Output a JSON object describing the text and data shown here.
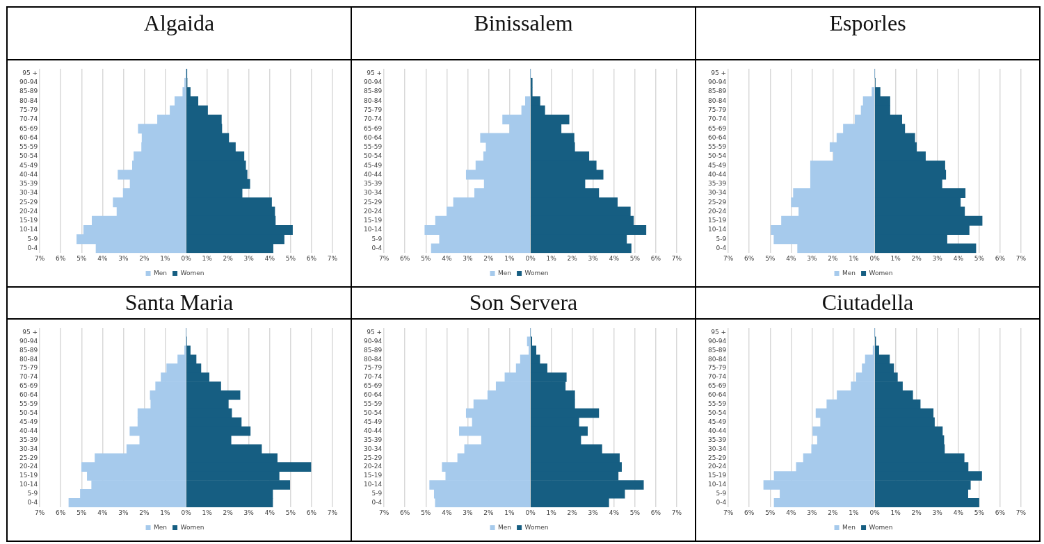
{
  "chart_data": [
    {
      "type": "bar",
      "orientation": "horizontal",
      "stacked": true,
      "title": "Algaida",
      "categories": [
        "95 +",
        "90-94",
        "85-89",
        "80-84",
        "75-79",
        "70-74",
        "65-69",
        "60-64",
        "55-59",
        "50-54",
        "45-49",
        "40-44",
        "35-39",
        "30-34",
        "25-29",
        "20-24",
        "15-19",
        "10-14",
        "5-9",
        "0-4"
      ],
      "series": [
        {
          "name": "Men",
          "color": "#a6caec",
          "values": [
            0,
            -0.07,
            -0.16,
            -0.54,
            -0.77,
            -1.37,
            -2.29,
            -2.11,
            -2.13,
            -2.5,
            -2.57,
            -3.26,
            -2.68,
            -3.01,
            -3.49,
            -3.31,
            -4.5,
            -4.9,
            -5.23,
            -4.31
          ]
        },
        {
          "name": "Women",
          "color": "#165e82",
          "values": [
            0.04,
            0.05,
            0.2,
            0.57,
            1.03,
            1.69,
            1.71,
            2.04,
            2.36,
            2.77,
            2.85,
            2.92,
            3.05,
            2.68,
            4.09,
            4.24,
            4.27,
            5.09,
            4.69,
            4.16
          ]
        }
      ],
      "xlim": [
        -7,
        7
      ],
      "xticks": [
        {
          "value": -7,
          "label": "7%"
        },
        {
          "value": -6,
          "label": "6%"
        },
        {
          "value": -5,
          "label": "5%"
        },
        {
          "value": -4,
          "label": "4%"
        },
        {
          "value": -3,
          "label": "3%"
        },
        {
          "value": -2,
          "label": "2%"
        },
        {
          "value": -1,
          "label": "1%"
        },
        {
          "value": 0,
          "label": "0%"
        },
        {
          "value": 1,
          "label": "1%"
        },
        {
          "value": 2,
          "label": "2%"
        },
        {
          "value": 3,
          "label": "3%"
        },
        {
          "value": 4,
          "label": "4%"
        },
        {
          "value": 5,
          "label": "5%"
        },
        {
          "value": 6,
          "label": "6%"
        },
        {
          "value": 7,
          "label": "7%"
        }
      ],
      "grid": "x",
      "legend": "bottom"
    },
    {
      "type": "bar",
      "orientation": "horizontal",
      "stacked": true,
      "title": "Binissalem",
      "categories": [
        "95 +",
        "90-94",
        "85-89",
        "80-84",
        "75-79",
        "70-74",
        "65-69",
        "60-64",
        "55-59",
        "50-54",
        "45-49",
        "40-44",
        "35-39",
        "30-34",
        "25-29",
        "20-24",
        "15-19",
        "10-14",
        "5-9",
        "0-4"
      ],
      "series": [
        {
          "name": "Men",
          "color": "#a6caec",
          "values": [
            0,
            null,
            null,
            -0.24,
            -0.42,
            -1.33,
            -0.99,
            -2.39,
            -2.12,
            -2.24,
            -2.61,
            -3.07,
            -2.21,
            -2.67,
            -3.68,
            -4.0,
            -4.54,
            -5.05,
            -4.35,
            -4.74
          ]
        },
        {
          "name": "Women",
          "color": "#165e82",
          "values": [
            0,
            0.09,
            0.09,
            0.46,
            0.69,
            1.85,
            1.47,
            2.09,
            2.12,
            2.8,
            3.15,
            3.48,
            2.61,
            3.27,
            4.16,
            4.78,
            4.93,
            5.53,
            4.6,
            4.82
          ]
        }
      ],
      "xlim": [
        -7,
        7
      ],
      "xticks": [
        {
          "value": -7,
          "label": "7%"
        },
        {
          "value": -6,
          "label": "6%"
        },
        {
          "value": -5,
          "label": "5%"
        },
        {
          "value": -4,
          "label": "4%"
        },
        {
          "value": -3,
          "label": "3%"
        },
        {
          "value": -2,
          "label": "2%"
        },
        {
          "value": -1,
          "label": "1%"
        },
        {
          "value": 0,
          "label": "0%"
        },
        {
          "value": 1,
          "label": "1%"
        },
        {
          "value": 2,
          "label": "2%"
        },
        {
          "value": 3,
          "label": "3%"
        },
        {
          "value": 4,
          "label": "4%"
        },
        {
          "value": 5,
          "label": "5%"
        },
        {
          "value": 6,
          "label": "6%"
        },
        {
          "value": 7,
          "label": "7%"
        }
      ],
      "grid": "x",
      "legend": "bottom"
    },
    {
      "type": "bar",
      "orientation": "horizontal",
      "stacked": true,
      "title": "Esporles",
      "categories": [
        "95 +",
        "90-94",
        "85-89",
        "80-84",
        "75-79",
        "70-74",
        "65-69",
        "60-64",
        "55-59",
        "50-54",
        "45-49",
        "40-44",
        "35-39",
        "30-34",
        "25-29",
        "20-24",
        "15-19",
        "10-14",
        "5-9",
        "0-4"
      ],
      "series": [
        {
          "name": "Men",
          "color": "#a6caec",
          "values": [
            0,
            null,
            -0.13,
            -0.55,
            -0.65,
            -0.94,
            -1.5,
            -1.81,
            -2.14,
            -1.97,
            -3.07,
            -3.07,
            -3.07,
            -3.89,
            -3.99,
            -3.63,
            -4.46,
            -4.96,
            -4.82,
            -3.69
          ]
        },
        {
          "name": "Women",
          "color": "#165e82",
          "values": [
            0,
            0.03,
            0.26,
            0.73,
            0.73,
            1.3,
            1.44,
            1.92,
            2.0,
            2.43,
            3.36,
            3.4,
            3.22,
            4.33,
            4.1,
            4.3,
            5.14,
            4.52,
            3.46,
            4.84
          ]
        }
      ],
      "xlim": [
        -7,
        7
      ],
      "xticks": [
        {
          "value": -7,
          "label": "7%"
        },
        {
          "value": -6,
          "label": "6%"
        },
        {
          "value": -5,
          "label": "5%"
        },
        {
          "value": -4,
          "label": "4%"
        },
        {
          "value": -3,
          "label": "3%"
        },
        {
          "value": -2,
          "label": "2%"
        },
        {
          "value": -1,
          "label": "1%"
        },
        {
          "value": 0,
          "label": "0%"
        },
        {
          "value": 1,
          "label": "1%"
        },
        {
          "value": 2,
          "label": "2%"
        },
        {
          "value": 3,
          "label": "3%"
        },
        {
          "value": 4,
          "label": "4%"
        },
        {
          "value": 5,
          "label": "5%"
        },
        {
          "value": 6,
          "label": "6%"
        },
        {
          "value": 7,
          "label": "7%"
        }
      ],
      "grid": "x",
      "legend": "bottom"
    },
    {
      "type": "bar",
      "orientation": "horizontal",
      "stacked": true,
      "title": "Santa Maria",
      "categories": [
        "95 +",
        "90-94",
        "85-89",
        "80-84",
        "75-79",
        "70-74",
        "65-69",
        "60-64",
        "55-59",
        "50-54",
        "45-49",
        "40-44",
        "35-39",
        "30-34",
        "25-29",
        "20-24",
        "15-19",
        "10-14",
        "5-9",
        "0-4"
      ],
      "series": [
        {
          "name": "Men",
          "color": "#a6caec",
          "values": [
            0,
            0,
            -0.07,
            -0.4,
            -0.93,
            -1.2,
            -1.46,
            -1.72,
            -1.69,
            -2.31,
            -2.31,
            -2.69,
            -2.22,
            -2.84,
            -4.36,
            -5.0,
            -4.73,
            -4.52,
            -5.06,
            -5.61
          ]
        },
        {
          "name": "Women",
          "color": "#165e82",
          "values": [
            0,
            0.02,
            0.2,
            0.48,
            0.71,
            1.1,
            1.66,
            2.58,
            2.02,
            2.18,
            2.64,
            3.07,
            2.15,
            3.61,
            4.36,
            5.97,
            4.45,
            4.96,
            4.14,
            4.14
          ]
        }
      ],
      "xlim": [
        -7,
        7
      ],
      "xticks": [
        {
          "value": -7,
          "label": "7%"
        },
        {
          "value": -6,
          "label": "6%"
        },
        {
          "value": -5,
          "label": "5%"
        },
        {
          "value": -4,
          "label": "4%"
        },
        {
          "value": -3,
          "label": "3%"
        },
        {
          "value": -2,
          "label": "2%"
        },
        {
          "value": -1,
          "label": "1%"
        },
        {
          "value": 0,
          "label": "0%"
        },
        {
          "value": 1,
          "label": "1%"
        },
        {
          "value": 2,
          "label": "2%"
        },
        {
          "value": 3,
          "label": "3%"
        },
        {
          "value": 4,
          "label": "4%"
        },
        {
          "value": 5,
          "label": "5%"
        },
        {
          "value": 6,
          "label": "6%"
        },
        {
          "value": 7,
          "label": "7%"
        }
      ],
      "grid": "x",
      "legend": "bottom"
    },
    {
      "type": "bar",
      "orientation": "horizontal",
      "stacked": true,
      "title": "Son Servera",
      "categories": [
        "95 +",
        "90-94",
        "85-89",
        "80-84",
        "75-79",
        "70-74",
        "65-69",
        "60-64",
        "55-59",
        "50-54",
        "45-49",
        "40-44",
        "35-39",
        "30-34",
        "25-29",
        "20-24",
        "15-19",
        "10-14",
        "5-9",
        "0-4"
      ],
      "series": [
        {
          "name": "Men",
          "color": "#a6caec",
          "values": [
            0,
            -0.15,
            -0.07,
            -0.48,
            -0.68,
            -1.22,
            -1.64,
            -2.04,
            -2.71,
            -3.07,
            -2.78,
            -3.4,
            -2.34,
            -3.15,
            -3.48,
            -4.22,
            -4.05,
            -4.82,
            -4.6,
            -4.55
          ]
        },
        {
          "name": "Women",
          "color": "#165e82",
          "values": [
            0,
            0.07,
            0.27,
            0.45,
            0.8,
            1.72,
            1.67,
            2.12,
            2.12,
            3.27,
            2.32,
            2.73,
            2.41,
            3.42,
            4.26,
            4.36,
            4.2,
            5.41,
            4.51,
            3.75
          ]
        }
      ],
      "xlim": [
        -7,
        7
      ],
      "xticks": [
        {
          "value": -7,
          "label": "7%"
        },
        {
          "value": -6,
          "label": "6%"
        },
        {
          "value": -5,
          "label": "5%"
        },
        {
          "value": -4,
          "label": "4%"
        },
        {
          "value": -3,
          "label": "3%"
        },
        {
          "value": -2,
          "label": "2%"
        },
        {
          "value": -1,
          "label": "1%"
        },
        {
          "value": 0,
          "label": "0%"
        },
        {
          "value": 1,
          "label": "1%"
        },
        {
          "value": 2,
          "label": "2%"
        },
        {
          "value": 3,
          "label": "3%"
        },
        {
          "value": 4,
          "label": "4%"
        },
        {
          "value": 5,
          "label": "5%"
        },
        {
          "value": 6,
          "label": "6%"
        },
        {
          "value": 7,
          "label": "7%"
        }
      ],
      "grid": "x",
      "legend": "bottom"
    },
    {
      "type": "bar",
      "orientation": "horizontal",
      "stacked": true,
      "title": "Ciutadella",
      "categories": [
        "95 +",
        "90-94",
        "85-89",
        "80-84",
        "75-79",
        "70-74",
        "65-69",
        "60-64",
        "55-59",
        "50-54",
        "45-49",
        "40-44",
        "35-39",
        "30-34",
        "25-29",
        "20-24",
        "15-19",
        "10-14",
        "5-9",
        "0-4"
      ],
      "series": [
        {
          "name": "Men",
          "color": "#a6caec",
          "values": [
            0,
            null,
            -0.08,
            -0.45,
            -0.6,
            -0.88,
            -1.13,
            -1.8,
            -2.29,
            -2.81,
            -2.59,
            -2.96,
            -2.74,
            -3.02,
            -3.41,
            -3.75,
            -4.81,
            -5.31,
            -4.53,
            -4.81
          ]
        },
        {
          "name": "Women",
          "color": "#165e82",
          "values": [
            0,
            0.05,
            0.2,
            0.71,
            0.91,
            1.09,
            1.33,
            1.82,
            2.18,
            2.8,
            2.86,
            3.24,
            3.31,
            3.34,
            4.28,
            4.47,
            5.12,
            4.58,
            4.46,
            4.99
          ]
        }
      ],
      "xlim": [
        -7,
        7
      ],
      "xticks": [
        {
          "value": -7,
          "label": "7%"
        },
        {
          "value": -6,
          "label": "6%"
        },
        {
          "value": -5,
          "label": "5%"
        },
        {
          "value": -4,
          "label": "4%"
        },
        {
          "value": -3,
          "label": "3%"
        },
        {
          "value": -2,
          "label": "2%"
        },
        {
          "value": -1,
          "label": "1%"
        },
        {
          "value": 0,
          "label": "0%"
        },
        {
          "value": 1,
          "label": "1%"
        },
        {
          "value": 2,
          "label": "2%"
        },
        {
          "value": 3,
          "label": "3%"
        },
        {
          "value": 4,
          "label": "4%"
        },
        {
          "value": 5,
          "label": "5%"
        },
        {
          "value": 6,
          "label": "6%"
        },
        {
          "value": 7,
          "label": "7%"
        }
      ],
      "grid": "x",
      "legend": "bottom"
    }
  ]
}
